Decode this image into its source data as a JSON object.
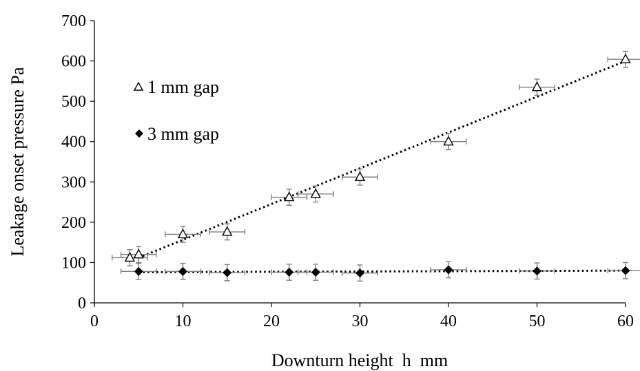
{
  "chart_data": {
    "type": "scatter",
    "title": "",
    "xlabel": "Downturn height  h  mm",
    "ylabel": "Leakage onset pressure Pa",
    "xlim": [
      0,
      60
    ],
    "ylim": [
      0,
      700
    ],
    "xticks": [
      0,
      10,
      20,
      30,
      40,
      50,
      60
    ],
    "yticks": [
      0,
      100,
      200,
      300,
      400,
      500,
      600,
      700
    ],
    "grid": false,
    "legend_position": "left",
    "x_error": 2,
    "y_error": 20,
    "series": [
      {
        "name": "1 mm gap",
        "marker": "triangle-open",
        "color": "#000000",
        "x": [
          4,
          5,
          10,
          15,
          22,
          25,
          30,
          40,
          50,
          60
        ],
        "y": [
          112,
          120,
          170,
          176,
          262,
          270,
          312,
          400,
          535,
          604
        ],
        "trendline": {
          "type": "linear",
          "x": [
            5,
            60
          ],
          "y": [
            112,
            600
          ]
        }
      },
      {
        "name": "3 mm gap",
        "marker": "diamond-filled",
        "color": "#000000",
        "x": [
          5,
          10,
          15,
          22,
          25,
          30,
          40,
          50,
          60
        ],
        "y": [
          78,
          78,
          75,
          76,
          76,
          74,
          82,
          79,
          80
        ],
        "trendline": {
          "type": "linear",
          "x": [
            5,
            60
          ],
          "y": [
            76,
            80
          ]
        }
      }
    ]
  }
}
